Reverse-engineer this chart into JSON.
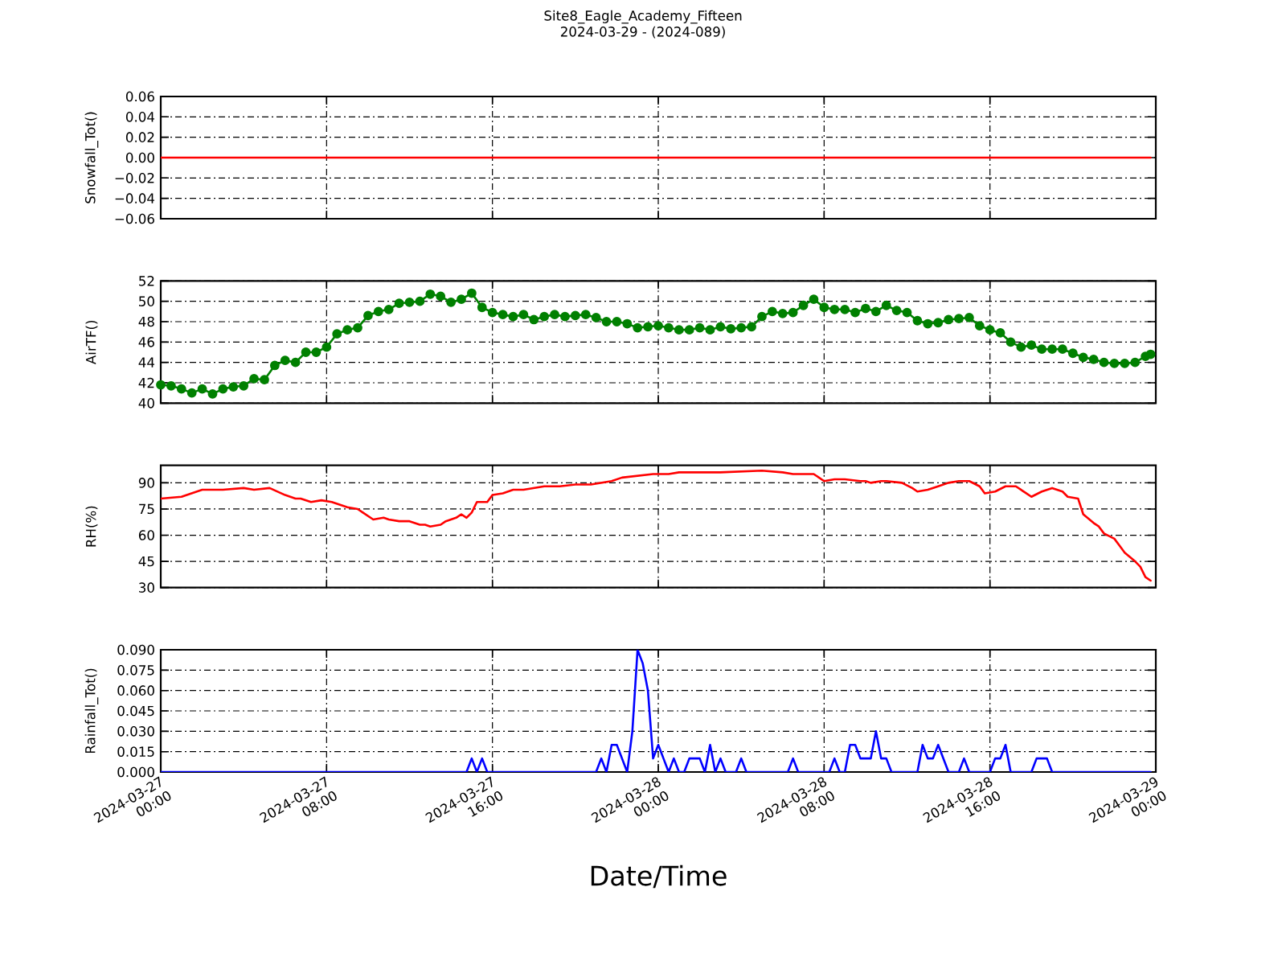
{
  "chart_data": [
    {
      "type": "line",
      "title": "Site8_Eagle_Academy_Fifteen",
      "subtitle": "2024-03-29 - (2024-089)",
      "ylabel": "Snowfall_Tot()",
      "x": [
        "2024-03-27T00:00",
        "2024-03-28T23:45"
      ],
      "series": [
        {
          "color": "#ff0000",
          "values": [
            0,
            0
          ]
        }
      ],
      "xlim": [
        "2024-03-27T00:00",
        "2024-03-29T00:00"
      ],
      "xticks": [
        "2024-03-27T00:00",
        "2024-03-27T08:00",
        "2024-03-27T16:00",
        "2024-03-28T00:00",
        "2024-03-28T08:00",
        "2024-03-28T16:00",
        "2024-03-29T00:00"
      ],
      "ylim": [
        -0.06,
        0.06
      ],
      "yticks": [
        {
          "value": -0.06,
          "label": "−0.06"
        },
        {
          "value": -0.04,
          "label": "−0.04"
        },
        {
          "value": -0.02,
          "label": "−0.02"
        },
        {
          "value": 0,
          "label": "0.00"
        },
        {
          "value": 0.02,
          "label": "0.02"
        },
        {
          "value": 0.04,
          "label": "0.04"
        },
        {
          "value": 0.06,
          "label": "0.06"
        }
      ],
      "grid": true,
      "tick_labels": "y"
    },
    {
      "type": "line",
      "ylabel": "AirTF()",
      "marker": "circle",
      "x": [
        "2024-03-27T00:00",
        "2024-03-27T00:30",
        "2024-03-27T01:00",
        "2024-03-27T01:30",
        "2024-03-27T02:00",
        "2024-03-27T02:30",
        "2024-03-27T03:00",
        "2024-03-27T03:30",
        "2024-03-27T04:00",
        "2024-03-27T04:30",
        "2024-03-27T05:00",
        "2024-03-27T05:30",
        "2024-03-27T06:00",
        "2024-03-27T06:30",
        "2024-03-27T07:00",
        "2024-03-27T07:30",
        "2024-03-27T08:00",
        "2024-03-27T08:30",
        "2024-03-27T09:00",
        "2024-03-27T09:30",
        "2024-03-27T10:00",
        "2024-03-27T10:30",
        "2024-03-27T11:00",
        "2024-03-27T11:30",
        "2024-03-27T12:00",
        "2024-03-27T12:30",
        "2024-03-27T13:00",
        "2024-03-27T13:30",
        "2024-03-27T14:00",
        "2024-03-27T14:30",
        "2024-03-27T15:00",
        "2024-03-27T15:30",
        "2024-03-27T16:00",
        "2024-03-27T16:30",
        "2024-03-27T17:00",
        "2024-03-27T17:30",
        "2024-03-27T18:00",
        "2024-03-27T18:30",
        "2024-03-27T19:00",
        "2024-03-27T19:30",
        "2024-03-27T20:00",
        "2024-03-27T20:30",
        "2024-03-27T21:00",
        "2024-03-27T21:30",
        "2024-03-27T22:00",
        "2024-03-27T22:30",
        "2024-03-27T23:00",
        "2024-03-27T23:30",
        "2024-03-28T00:00",
        "2024-03-28T00:30",
        "2024-03-28T01:00",
        "2024-03-28T01:30",
        "2024-03-28T02:00",
        "2024-03-28T02:30",
        "2024-03-28T03:00",
        "2024-03-28T03:30",
        "2024-03-28T04:00",
        "2024-03-28T04:30",
        "2024-03-28T05:00",
        "2024-03-28T05:30",
        "2024-03-28T06:00",
        "2024-03-28T06:30",
        "2024-03-28T07:00",
        "2024-03-28T07:30",
        "2024-03-28T08:00",
        "2024-03-28T08:30",
        "2024-03-28T09:00",
        "2024-03-28T09:30",
        "2024-03-28T10:00",
        "2024-03-28T10:30",
        "2024-03-28T11:00",
        "2024-03-28T11:30",
        "2024-03-28T12:00",
        "2024-03-28T12:30",
        "2024-03-28T13:00",
        "2024-03-28T13:30",
        "2024-03-28T14:00",
        "2024-03-28T14:30",
        "2024-03-28T15:00",
        "2024-03-28T15:30",
        "2024-03-28T16:00",
        "2024-03-28T16:30",
        "2024-03-28T17:00",
        "2024-03-28T17:30",
        "2024-03-28T18:00",
        "2024-03-28T18:30",
        "2024-03-28T19:00",
        "2024-03-28T19:30",
        "2024-03-28T20:00",
        "2024-03-28T20:30",
        "2024-03-28T21:00",
        "2024-03-28T21:30",
        "2024-03-28T22:00",
        "2024-03-28T22:30",
        "2024-03-28T23:00",
        "2024-03-28T23:30",
        "2024-03-28T23:45"
      ],
      "series": [
        {
          "color": "#008000",
          "values": [
            41.8,
            41.7,
            41.4,
            41.0,
            41.4,
            40.9,
            41.4,
            41.6,
            41.7,
            42.4,
            42.3,
            43.7,
            44.2,
            44.0,
            45.0,
            45.0,
            45.5,
            46.8,
            47.2,
            47.4,
            48.6,
            49.0,
            49.2,
            49.8,
            49.9,
            50.0,
            50.7,
            50.5,
            49.9,
            50.2,
            50.8,
            49.4,
            48.9,
            48.7,
            48.5,
            48.7,
            48.2,
            48.5,
            48.7,
            48.5,
            48.6,
            48.7,
            48.4,
            48.0,
            48.0,
            47.8,
            47.4,
            47.5,
            47.6,
            47.4,
            47.2,
            47.2,
            47.4,
            47.2,
            47.5,
            47.3,
            47.4,
            47.5,
            48.5,
            49.0,
            48.8,
            48.9,
            49.6,
            50.2,
            49.4,
            49.2,
            49.2,
            48.9,
            49.3,
            49.0,
            49.6,
            49.1,
            48.9,
            48.1,
            47.8,
            47.9,
            48.2,
            48.3,
            48.4,
            47.6,
            47.2,
            46.9,
            46.0,
            45.5,
            45.7,
            45.3,
            45.3,
            45.3,
            44.9,
            44.5,
            44.3,
            44.0,
            43.9,
            43.9,
            44.0,
            44.6,
            44.8
          ]
        }
      ],
      "xlim": [
        "2024-03-27T00:00",
        "2024-03-29T00:00"
      ],
      "xticks": [
        "2024-03-27T00:00",
        "2024-03-27T08:00",
        "2024-03-27T16:00",
        "2024-03-28T00:00",
        "2024-03-28T08:00",
        "2024-03-28T16:00",
        "2024-03-29T00:00"
      ],
      "ylim": [
        40,
        52
      ],
      "yticks": [
        40,
        42,
        44,
        46,
        48,
        50,
        52
      ],
      "grid": true,
      "tick_labels": "y"
    },
    {
      "type": "line",
      "ylabel": "RH(%)",
      "x": [
        "2024-03-27T00:00",
        "2024-03-27T01:00",
        "2024-03-27T02:00",
        "2024-03-27T03:00",
        "2024-03-27T04:00",
        "2024-03-27T04:30",
        "2024-03-27T05:15",
        "2024-03-27T06:00",
        "2024-03-27T06:30",
        "2024-03-27T06:45",
        "2024-03-27T07:15",
        "2024-03-27T07:45",
        "2024-03-27T08:15",
        "2024-03-27T09:00",
        "2024-03-27T09:30",
        "2024-03-27T09:45",
        "2024-03-27T10:15",
        "2024-03-27T10:45",
        "2024-03-27T11:00",
        "2024-03-27T11:30",
        "2024-03-27T12:00",
        "2024-03-27T12:30",
        "2024-03-27T12:45",
        "2024-03-27T13:00",
        "2024-03-27T13:30",
        "2024-03-27T13:45",
        "2024-03-27T14:15",
        "2024-03-27T14:30",
        "2024-03-27T14:45",
        "2024-03-27T15:00",
        "2024-03-27T15:15",
        "2024-03-27T15:45",
        "2024-03-27T16:00",
        "2024-03-27T16:30",
        "2024-03-27T17:00",
        "2024-03-27T17:30",
        "2024-03-27T18:00",
        "2024-03-27T18:30",
        "2024-03-27T19:15",
        "2024-03-27T20:00",
        "2024-03-27T20:45",
        "2024-03-27T21:45",
        "2024-03-27T22:15",
        "2024-03-27T23:00",
        "2024-03-27T23:45",
        "2024-03-28T00:30",
        "2024-03-28T01:00",
        "2024-03-28T03:00",
        "2024-03-28T05:00",
        "2024-03-28T06:00",
        "2024-03-28T06:30",
        "2024-03-28T07:30",
        "2024-03-28T07:45",
        "2024-03-28T08:00",
        "2024-03-28T08:30",
        "2024-03-28T09:00",
        "2024-03-28T09:45",
        "2024-03-28T10:00",
        "2024-03-28T10:15",
        "2024-03-28T10:45",
        "2024-03-28T11:00",
        "2024-03-28T11:45",
        "2024-03-28T12:15",
        "2024-03-28T12:30",
        "2024-03-28T13:00",
        "2024-03-28T13:30",
        "2024-03-28T14:00",
        "2024-03-28T14:30",
        "2024-03-28T15:00",
        "2024-03-28T15:30",
        "2024-03-28T15:45",
        "2024-03-28T16:15",
        "2024-03-28T16:45",
        "2024-03-28T17:15",
        "2024-03-28T17:45",
        "2024-03-28T18:00",
        "2024-03-28T18:30",
        "2024-03-28T19:00",
        "2024-03-28T19:30",
        "2024-03-28T19:45",
        "2024-03-28T20:15",
        "2024-03-28T20:30",
        "2024-03-28T21:00",
        "2024-03-28T21:15",
        "2024-03-28T21:30",
        "2024-03-28T22:00",
        "2024-03-28T22:15",
        "2024-03-28T22:30",
        "2024-03-28T23:00",
        "2024-03-28T23:15",
        "2024-03-28T23:30",
        "2024-03-28T23:45"
      ],
      "series": [
        {
          "color": "#ff0000",
          "values": [
            81,
            82,
            86,
            86,
            87,
            86,
            87,
            83,
            81,
            81,
            79,
            80,
            79,
            76,
            75,
            73,
            69,
            70,
            69,
            68,
            68,
            66,
            66,
            65,
            66,
            68,
            70,
            72,
            70,
            73,
            79,
            79,
            83,
            84,
            86,
            86,
            87,
            88,
            88,
            89,
            89,
            91,
            93,
            94,
            95,
            95,
            96,
            96,
            97,
            96,
            95,
            95,
            93,
            91,
            92,
            92,
            91,
            91,
            90,
            91,
            91,
            90,
            87,
            85,
            86,
            88,
            90,
            91,
            91,
            88,
            84,
            85,
            88,
            88,
            84,
            82,
            85,
            87,
            85,
            82,
            81,
            72,
            67,
            65,
            61,
            58,
            54,
            50,
            45,
            42,
            36,
            34
          ]
        }
      ],
      "xlim": [
        "2024-03-27T00:00",
        "2024-03-29T00:00"
      ],
      "xticks": [
        "2024-03-27T00:00",
        "2024-03-27T08:00",
        "2024-03-27T16:00",
        "2024-03-28T00:00",
        "2024-03-28T08:00",
        "2024-03-28T16:00",
        "2024-03-29T00:00"
      ],
      "ylim": [
        30,
        100
      ],
      "yticks": [
        30,
        45,
        60,
        75,
        90
      ],
      "grid": true,
      "tick_labels": "y"
    },
    {
      "type": "line",
      "ylabel": "Rainfall_Tot()",
      "xlabel": "Date/Time",
      "x": [
        "2024-03-27T00:00",
        "2024-03-27T14:45",
        "2024-03-27T15:00",
        "2024-03-27T15:15",
        "2024-03-27T15:30",
        "2024-03-27T15:45",
        "2024-03-27T21:00",
        "2024-03-27T21:15",
        "2024-03-27T21:30",
        "2024-03-27T21:45",
        "2024-03-27T22:00",
        "2024-03-27T22:30",
        "2024-03-27T22:45",
        "2024-03-27T23:00",
        "2024-03-27T23:15",
        "2024-03-27T23:30",
        "2024-03-27T23:45",
        "2024-03-28T00:00",
        "2024-03-28T00:15",
        "2024-03-28T00:30",
        "2024-03-28T00:45",
        "2024-03-28T01:00",
        "2024-03-28T01:15",
        "2024-03-28T01:30",
        "2024-03-28T01:45",
        "2024-03-28T02:00",
        "2024-03-28T02:15",
        "2024-03-28T02:30",
        "2024-03-28T02:45",
        "2024-03-28T03:00",
        "2024-03-28T03:15",
        "2024-03-28T03:45",
        "2024-03-28T04:00",
        "2024-03-28T04:15",
        "2024-03-28T06:15",
        "2024-03-28T06:30",
        "2024-03-28T06:45",
        "2024-03-28T08:15",
        "2024-03-28T08:30",
        "2024-03-28T08:45",
        "2024-03-28T09:00",
        "2024-03-28T09:15",
        "2024-03-28T09:30",
        "2024-03-28T09:45",
        "2024-03-28T10:00",
        "2024-03-28T10:15",
        "2024-03-28T10:30",
        "2024-03-28T10:45",
        "2024-03-28T11:00",
        "2024-03-28T11:15",
        "2024-03-28T12:30",
        "2024-03-28T12:45",
        "2024-03-28T13:00",
        "2024-03-28T13:15",
        "2024-03-28T13:30",
        "2024-03-28T13:45",
        "2024-03-28T14:00",
        "2024-03-28T14:30",
        "2024-03-28T14:45",
        "2024-03-28T15:00",
        "2024-03-28T16:00",
        "2024-03-28T16:15",
        "2024-03-28T16:30",
        "2024-03-28T16:45",
        "2024-03-28T17:00",
        "2024-03-28T18:00",
        "2024-03-28T18:15",
        "2024-03-28T18:30",
        "2024-03-28T18:45",
        "2024-03-28T19:00",
        "2024-03-28T23:45"
      ],
      "series": [
        {
          "color": "#0000ff",
          "values": [
            0,
            0,
            0.01,
            0,
            0.01,
            0,
            0,
            0.01,
            0,
            0.02,
            0.02,
            0,
            0.03,
            0.09,
            0.08,
            0.06,
            0.01,
            0.02,
            0.01,
            0,
            0.01,
            0,
            0,
            0.01,
            0.01,
            0.01,
            0,
            0.02,
            0,
            0.01,
            0,
            0,
            0.01,
            0,
            0,
            0.01,
            0,
            0,
            0.01,
            0,
            0,
            0.02,
            0.02,
            0.01,
            0.01,
            0.01,
            0.03,
            0.01,
            0.01,
            0,
            0,
            0.02,
            0.01,
            0.01,
            0.02,
            0.01,
            0,
            0,
            0.01,
            0,
            0,
            0.01,
            0.01,
            0.02,
            0,
            0,
            0.01,
            0.01,
            0.01,
            0,
            0
          ]
        }
      ],
      "xlim": [
        "2024-03-27T00:00",
        "2024-03-29T00:00"
      ],
      "xticks": [
        {
          "value": "2024-03-27T00:00",
          "label": "2024-03-27 00:00"
        },
        {
          "value": "2024-03-27T08:00",
          "label": "2024-03-27 08:00"
        },
        {
          "value": "2024-03-27T16:00",
          "label": "2024-03-27 16:00"
        },
        {
          "value": "2024-03-28T00:00",
          "label": "2024-03-28 00:00"
        },
        {
          "value": "2024-03-28T08:00",
          "label": "2024-03-28 08:00"
        },
        {
          "value": "2024-03-28T16:00",
          "label": "2024-03-28 16:00"
        },
        {
          "value": "2024-03-29T00:00",
          "label": "2024-03-29 00:00"
        }
      ],
      "ylim": [
        0,
        0.09
      ],
      "yticks": [
        {
          "value": 0,
          "label": "0.000"
        },
        {
          "value": 0.015,
          "label": "0.015"
        },
        {
          "value": 0.03,
          "label": "0.030"
        },
        {
          "value": 0.045,
          "label": "0.045"
        },
        {
          "value": 0.06,
          "label": "0.060"
        },
        {
          "value": 0.075,
          "label": "0.075"
        },
        {
          "value": 0.09,
          "label": "0.090"
        }
      ],
      "grid": true
    }
  ]
}
